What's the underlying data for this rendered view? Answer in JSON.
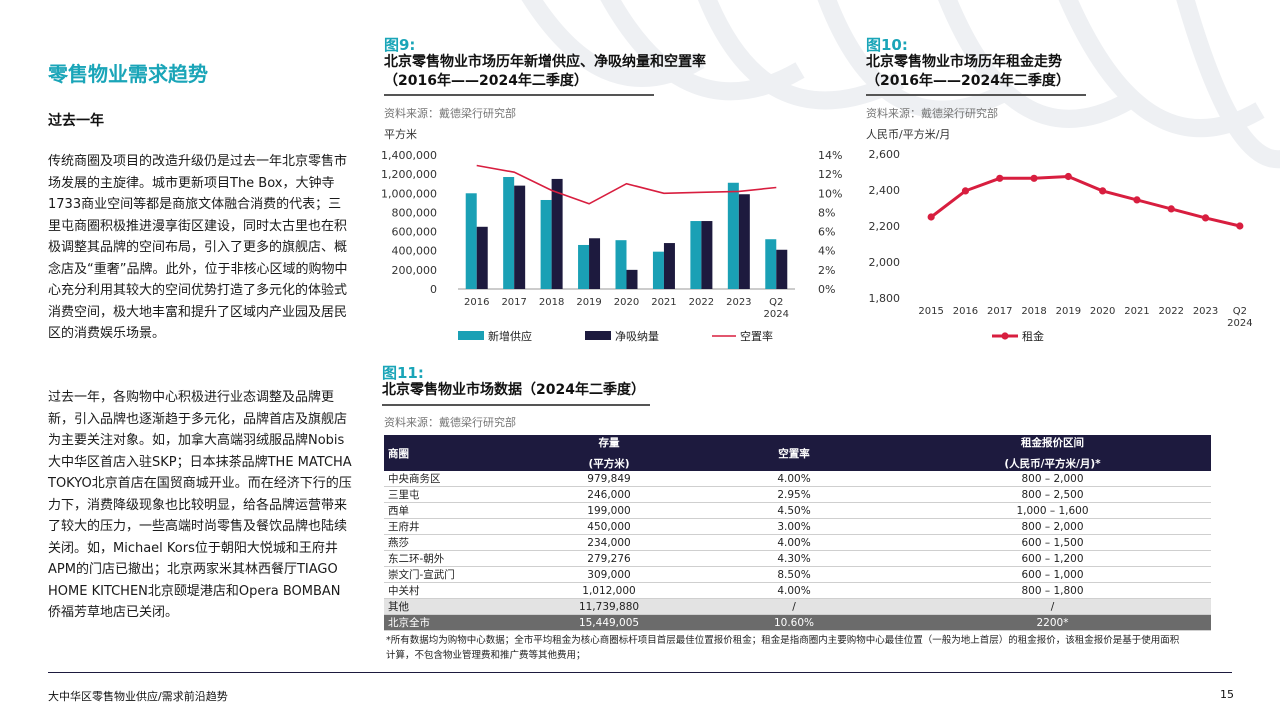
{
  "section_title": "零售物业需求趋势",
  "sub_title": "过去一年",
  "paragraphs": [
    "传统商圈及项目的改造升级仍是过去一年北京零售市场发展的主旋律。城市更新项目The Box，大钟寺1733商业空间等都是商旅文体融合消费的代表；三里屯商圈积极推进漫享街区建设，同时太古里也在积极调整其品牌的空间布局，引入了更多的旗舰店、概念店及“重奢”品牌。此外，位于非核心区域的购物中心充分利用其较大的空间优势打造了多元化的体验式消费空间，极大地丰富和提升了区域内产业园及居民区的消费娱乐场景。",
    "过去一年，各购物中心积极进行业态调整及品牌更新，引入品牌也逐渐趋于多元化，品牌首店及旗舰店为主要关注对象。如，加拿大高端羽绒服品牌Nobis大中华区首店入驻SKP；日本抹茶品牌THE MATCHA TOKYO北京首店在国贸商城开业。而在经济下行的压力下，消费降级现象也比较明显，给各品牌运营带来了较大的压力，一些高端时尚零售及餐饮品牌也陆续关闭。如，Michael Kors位于朝阳大悦城和王府井APM的门店已撤出；北京两家米其林西餐厅TIAGO HOME KITCHEN北京颐堤港店和Opera BOMBAN侨福芳草地店已关闭。"
  ],
  "fig9": {
    "label": "图9:",
    "title_line1": "北京零售物业市场历年新增供应、净吸纳量和空置率",
    "title_line2": "（2016年——2024年二季度）",
    "source": "资料来源：戴德梁行研究部",
    "unit": "平方米"
  },
  "fig10": {
    "label": "图10:",
    "title_line1": "北京零售物业市场历年租金走势",
    "title_line2": "（2016年——2024年二季度）",
    "source": "资料来源：戴德梁行研究部",
    "unit": "人民币/平方米/月"
  },
  "fig11": {
    "label": "图11:",
    "title": "北京零售物业市场数据（2024年二季度）",
    "source": "资料来源：戴德梁行研究部"
  },
  "chart_data": [
    {
      "type": "bar",
      "categories": [
        "2016",
        "2017",
        "2018",
        "2019",
        "2020",
        "2021",
        "2022",
        "2023",
        "Q2 2024"
      ],
      "series": [
        {
          "name": "新增供应",
          "kind": "bar",
          "axis": "left",
          "color": "#1aa0b5",
          "values": [
            1000000,
            1170000,
            930000,
            460000,
            510000,
            390000,
            710000,
            1110000,
            520000
          ]
        },
        {
          "name": "净吸纳量",
          "kind": "bar",
          "axis": "left",
          "color": "#1d1a3e",
          "values": [
            650000,
            1080000,
            1150000,
            530000,
            200000,
            480000,
            710000,
            990000,
            410000
          ]
        },
        {
          "name": "空置率",
          "kind": "line",
          "axis": "right",
          "color": "#d81e3f",
          "values": [
            12.9,
            12.2,
            10.3,
            8.9,
            11.0,
            10.0,
            10.1,
            10.2,
            10.6
          ]
        }
      ],
      "ylim_left": [
        0,
        1400000
      ],
      "yticks_left": [
        "1,400,000",
        "1,200,000",
        "1,000,000",
        "800,000",
        "600,000",
        "400,000",
        "200,000",
        "0"
      ],
      "ylim_right": [
        0,
        14
      ],
      "yticks_right": [
        "14%",
        "12%",
        "10%",
        "8%",
        "6%",
        "4%",
        "2%",
        "0%"
      ],
      "legend_position": "bottom"
    },
    {
      "type": "line",
      "categories": [
        "2015",
        "2016",
        "2017",
        "2018",
        "2019",
        "2020",
        "2021",
        "2022",
        "2023",
        "Q2 2024"
      ],
      "series": [
        {
          "name": "租金",
          "color": "#d81e3f",
          "values": [
            2250,
            2395,
            2465,
            2465,
            2475,
            2395,
            2345,
            2295,
            2245,
            2200
          ]
        }
      ],
      "ylim": [
        1800,
        2600
      ],
      "yticks": [
        "2,600",
        "2,400",
        "2,200",
        "2,000",
        "1,800"
      ],
      "legend_position": "bottom"
    }
  ],
  "table": {
    "headers": {
      "district": "商圈",
      "stock_line1": "存量",
      "stock_line2": "(平方米)",
      "vacancy": "空置率",
      "rent_line1": "租金报价区间",
      "rent_line2": "(人民币/平方米/月)*"
    },
    "rows": [
      {
        "district": "中央商务区",
        "stock": "979,849",
        "vacancy": "4.00%",
        "rent": "800 – 2,000"
      },
      {
        "district": "三里屯",
        "stock": "246,000",
        "vacancy": "2.95%",
        "rent": "800 – 2,500"
      },
      {
        "district": "西单",
        "stock": "199,000",
        "vacancy": "4.50%",
        "rent": "1,000 – 1,600"
      },
      {
        "district": "王府井",
        "stock": "450,000",
        "vacancy": "3.00%",
        "rent": "800 – 2,000"
      },
      {
        "district": "燕莎",
        "stock": "234,000",
        "vacancy": "4.00%",
        "rent": "600 – 1,500"
      },
      {
        "district": "东二环-朝外",
        "stock": "279,276",
        "vacancy": "4.30%",
        "rent": "600 – 1,200"
      },
      {
        "district": "崇文门-宣武门",
        "stock": "309,000",
        "vacancy": "8.50%",
        "rent": "600 – 1,000"
      },
      {
        "district": "中关村",
        "stock": "1,012,000",
        "vacancy": "4.00%",
        "rent": "800 – 1,800"
      }
    ],
    "other": {
      "district": "其他",
      "stock": "11,739,880",
      "vacancy": "/",
      "rent": "/"
    },
    "total": {
      "district": "北京全市",
      "stock": "15,449,005",
      "vacancy": "10.60%",
      "rent": "2200*"
    }
  },
  "note": "*所有数据均为购物中心数据；全市平均租金为核心商圈标杆项目首层最佳位置报价租金；租金是指商圈内主要购物中心最佳位置（一般为地上首层）的租金报价，该租金报价是基于使用面积计算，不包含物业管理费和推广费等其他费用；",
  "footer": "大中华区零售物业供应/需求前沿趋势",
  "page_number": "15"
}
